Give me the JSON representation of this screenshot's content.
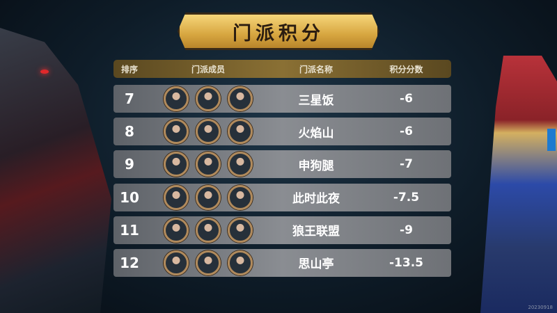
{
  "title": "门派积分",
  "header": {
    "rank": "排序",
    "members": "门派成员",
    "name": "门派名称",
    "score": "积分分数"
  },
  "rows": [
    {
      "rank": "7",
      "name": "三星饭",
      "score": "-6"
    },
    {
      "rank": "8",
      "name": "火焰山",
      "score": "-6"
    },
    {
      "rank": "9",
      "name": "申狗腿",
      "score": "-7"
    },
    {
      "rank": "10",
      "name": "此时此夜",
      "score": "-7.5"
    },
    {
      "rank": "11",
      "name": "狼王联盟",
      "score": "-9"
    },
    {
      "rank": "12",
      "name": "思山亭",
      "score": "-13.5"
    }
  ],
  "watermark": "20230918",
  "colors": {
    "gold": "#d7a640",
    "row": "#8a8d92",
    "accent_tab": "#1e7ad0"
  }
}
